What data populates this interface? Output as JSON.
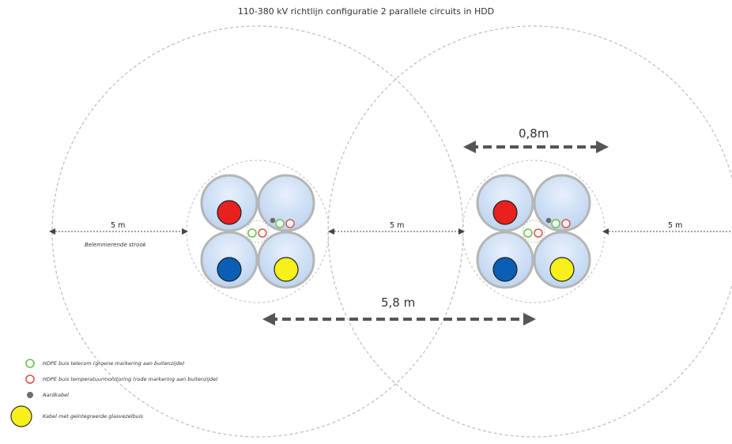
{
  "title": "110-380 kV richtlijn configuratie 2 parallele circuits in HDD",
  "dimensions": {
    "left_zone": "5 m",
    "middle_zone": "5 m",
    "right_zone": "5 m",
    "bundle_width": "0,8m",
    "circuit_spacing": "5,8 m"
  },
  "zone_label": "Belemmerende strook",
  "legend": [
    {
      "text": "HDPE buis telecom (groene markering aan buitenzijde)",
      "icon": "green-ring-icon"
    },
    {
      "text": "HDPE buis temperatuurmonitoring (rode markering aan buitenzijde)",
      "icon": "red-ring-icon"
    },
    {
      "text": "Aardkabel",
      "icon": "grey-dot-icon"
    },
    {
      "text": "Kabel met geïntegreerde glasvezelbuis",
      "icon": "yellow-circle-icon"
    }
  ],
  "colors": {
    "cable_red": "#e8201e",
    "cable_blue": "#0a5fb4",
    "cable_yellow": "#f7f01a",
    "pipe_fill": "#c7dbf5",
    "pipe_stroke": "#b5b5b5",
    "telecom": "#6abf4b",
    "temperature": "#d9534f",
    "earth": "#6d6d6d",
    "arrow": "#555555"
  }
}
